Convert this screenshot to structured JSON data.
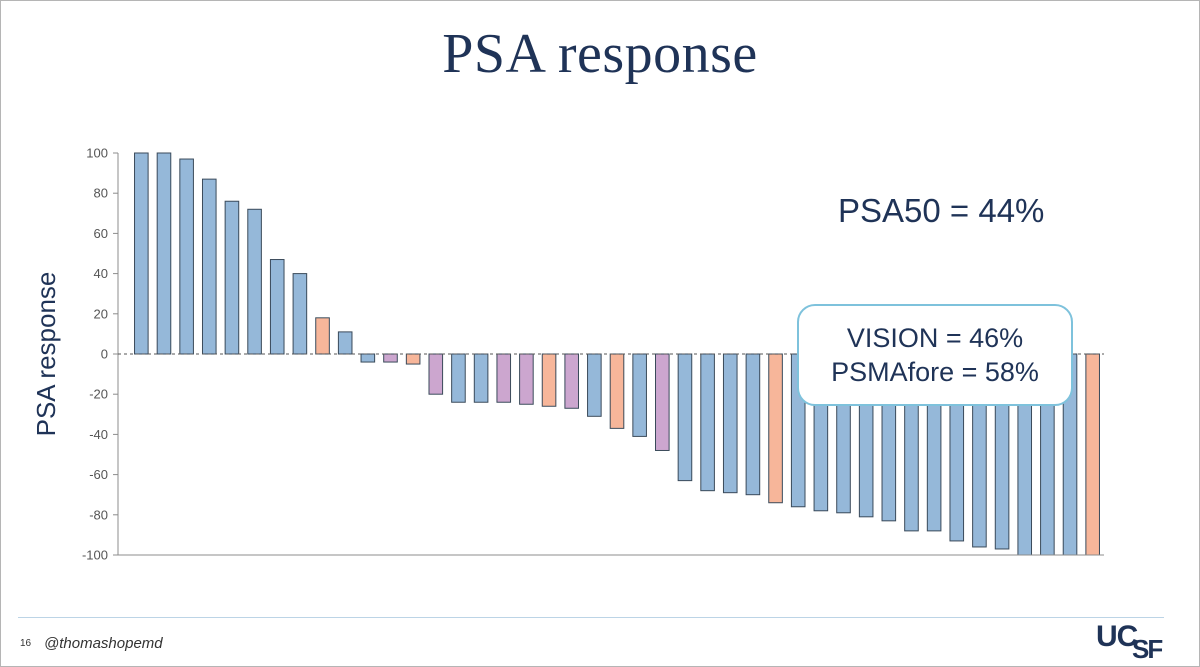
{
  "slide": {
    "title": "PSA response",
    "page_number": "16",
    "handle": "@thomashopemd",
    "logo_text": "UCSF"
  },
  "annotations": {
    "psa50": "PSA50 = 44%",
    "vision": "VISION = 46%",
    "psmafore": "PSMAfore = 58%"
  },
  "colors": {
    "blue": "#95b8d9",
    "orange": "#f7b69a",
    "purple": "#cca6cf",
    "bar_edge": "#3a4a5a",
    "title": "#1f3357"
  },
  "chart_data": {
    "type": "bar",
    "title": "",
    "xlabel": "",
    "ylabel": "PSA response",
    "ylim": [
      -100,
      100
    ],
    "yticks": [
      100,
      80,
      60,
      40,
      20,
      0,
      -20,
      -40,
      -60,
      -80,
      -100
    ],
    "grid": false,
    "zero_line": "dashed",
    "values": [
      100,
      100,
      97,
      87,
      76,
      72,
      47,
      40,
      18,
      11,
      -4,
      -4,
      -5,
      -20,
      -24,
      -24,
      -24,
      -25,
      -26,
      -27,
      -31,
      -37,
      -41,
      -48,
      -63,
      -68,
      -69,
      -70,
      -74,
      -76,
      -78,
      -79,
      -81,
      -83,
      -88,
      -88,
      -93,
      -96,
      -97,
      -100,
      -100,
      -100,
      -100
    ],
    "bar_groups": [
      "blue",
      "blue",
      "blue",
      "blue",
      "blue",
      "blue",
      "blue",
      "blue",
      "orange",
      "blue",
      "blue",
      "purple",
      "orange",
      "purple",
      "blue",
      "blue",
      "purple",
      "purple",
      "orange",
      "purple",
      "blue",
      "orange",
      "blue",
      "purple",
      "blue",
      "blue",
      "blue",
      "blue",
      "orange",
      "blue",
      "blue",
      "blue",
      "blue",
      "blue",
      "blue",
      "blue",
      "blue",
      "blue",
      "blue",
      "blue",
      "blue",
      "blue",
      "orange"
    ]
  }
}
